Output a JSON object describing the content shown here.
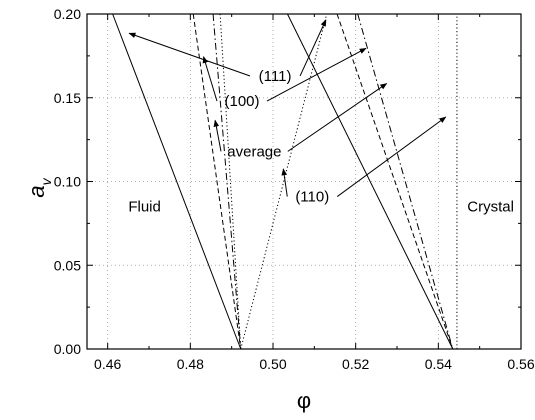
{
  "chart_data": {
    "type": "line",
    "xlabel": "φ",
    "ylabel": "a",
    "ylabel_subscript": "v",
    "xlim": [
      0.455,
      0.56
    ],
    "ylim": [
      0.0,
      0.2
    ],
    "xticks": [
      0.46,
      0.48,
      0.5,
      0.52,
      0.54,
      0.56
    ],
    "xtick_labels": [
      "0.46",
      "0.48",
      "0.50",
      "0.52",
      "0.54",
      "0.56"
    ],
    "yticks": [
      0.0,
      0.05,
      0.1,
      0.15,
      0.2
    ],
    "ytick_labels": [
      "0.00",
      "0.05",
      "0.10",
      "0.15",
      "0.20"
    ],
    "grid": "dotted",
    "region_labels": [
      {
        "text": "Fluid",
        "x": 0.465,
        "y": 0.085
      },
      {
        "text": "Crystal",
        "x": 0.547,
        "y": 0.085
      }
    ],
    "series": [
      {
        "name": "(111)",
        "style": "solid",
        "points": [
          [
            0.4612,
            0.2
          ],
          [
            0.4922,
            0.0
          ]
        ]
      },
      {
        "name": "(100)",
        "style": "dashed",
        "points": [
          [
            0.4807,
            0.2
          ],
          [
            0.4922,
            0.0
          ]
        ]
      },
      {
        "name": "average",
        "style": "dashdot",
        "points": [
          [
            0.4855,
            0.2
          ],
          [
            0.4922,
            0.0
          ]
        ]
      },
      {
        "name": "(110)",
        "style": "dotted",
        "points": [
          [
            0.4872,
            0.2
          ],
          [
            0.4922,
            0.0
          ]
        ]
      },
      {
        "name": "(111)",
        "style": "solid",
        "points": [
          [
            0.5035,
            0.2
          ],
          [
            0.5435,
            0.0
          ]
        ]
      },
      {
        "name": "(100)",
        "style": "dashed",
        "points": [
          [
            0.5155,
            0.2
          ],
          [
            0.5435,
            0.0
          ]
        ]
      },
      {
        "name": "average",
        "style": "dashdot",
        "points": [
          [
            0.5205,
            0.2
          ],
          [
            0.5435,
            0.0
          ]
        ]
      },
      {
        "name": "(110)",
        "style": "dotted",
        "points": [
          [
            0.4922,
            0.0
          ],
          [
            0.513,
            0.2
          ]
        ]
      },
      {
        "name": "(110)",
        "style": "dotted",
        "points": [
          [
            0.5445,
            0.0
          ],
          [
            0.5445,
            0.2
          ]
        ]
      }
    ],
    "annotations": [
      {
        "text": "(111)",
        "x": 0.5005,
        "y": 0.163,
        "arrows_to": [
          [
            0.4652,
            0.1885
          ],
          [
            0.5128,
            0.1965
          ]
        ]
      },
      {
        "text": "(100)",
        "x": 0.4925,
        "y": 0.148,
        "arrows_to": [
          [
            0.4832,
            0.1745
          ],
          [
            0.5225,
            0.1795
          ]
        ]
      },
      {
        "text": "average",
        "x": 0.4955,
        "y": 0.118,
        "arrows_to": [
          [
            0.486,
            0.1365
          ],
          [
            0.5275,
            0.1585
          ]
        ]
      },
      {
        "text": "(110)",
        "x": 0.5095,
        "y": 0.091,
        "arrows_to": [
          [
            0.5025,
            0.1075
          ],
          [
            0.5418,
            0.1385
          ]
        ]
      }
    ]
  }
}
